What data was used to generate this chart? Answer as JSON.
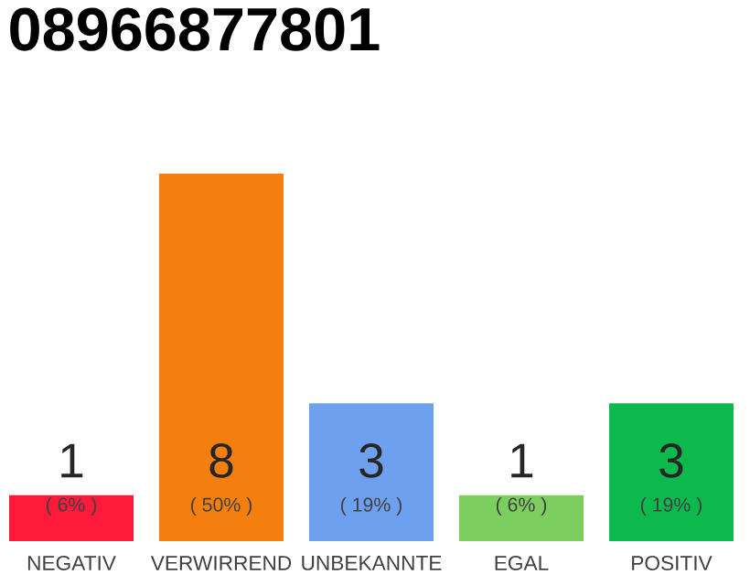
{
  "chart_data": {
    "type": "bar",
    "title": "08966877801",
    "categories": [
      "NEGATIV",
      "VERWIRREND",
      "UNBEKANNTE",
      "EGAL",
      "POSITIV"
    ],
    "values": [
      1,
      8,
      3,
      1,
      3
    ],
    "colors": [
      "#ff1a3c",
      "#f47f0f",
      "#6ea0f0",
      "#7ccf5f",
      "#0db84c"
    ],
    "data_labels": true,
    "annotations": [
      "( 6% )",
      "( 50% )",
      "( 19% )",
      "( 6% )",
      "( 19% )"
    ]
  }
}
